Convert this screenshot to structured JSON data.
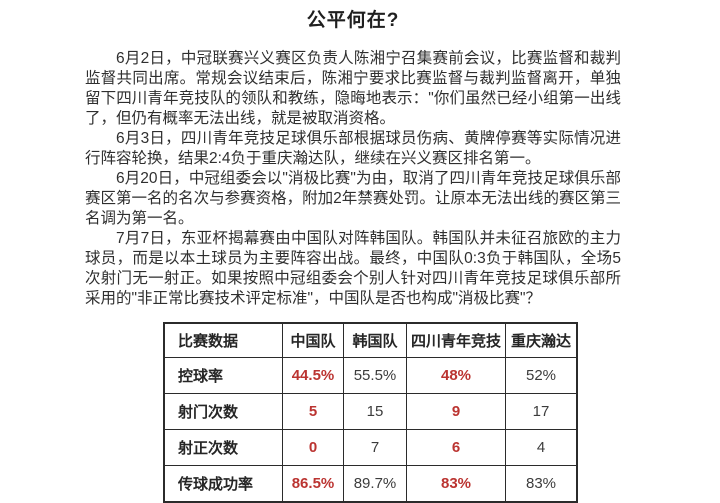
{
  "document": {
    "title": "公平何在?",
    "paragraphs": [
      "6月2日，中冠联赛兴义赛区负责人陈湘宁召集赛前会议，比赛监督和裁判监督共同出席。常规会议结束后，陈湘宁要求比赛监督与裁判监督离开，单独留下四川青年竞技队的领队和教练，隐晦地表示：\"你们虽然已经小组第一出线了，但仍有概率无法出线，就是被取消资格。",
      "6月3日，四川青年竞技足球俱乐部根据球员伤病、黄牌停赛等实际情况进行阵容轮换，结果2:4负于重庆瀚达队，继续在兴义赛区排名第一。",
      "6月20日，中冠组委会以\"消极比赛\"为由，取消了四川青年竞技足球俱乐部赛区第一名的名次与参赛资格，附加2年禁赛处罚。让原本无法出线的赛区第三名调为第一名。",
      "7月7日，东亚杯揭幕赛由中国队对阵韩国队。韩国队并未征召旅欧的主力球员，而是以本土球员为主要阵容出战。最终，中国队0:3负于韩国队，全场5次射门无一射正。如果按照中冠组委会个别人针对四川青年竞技足球俱乐部所采用的\"非正常比赛技术评定标准\"，中国队是否也构成\"消极比赛\"？"
    ]
  },
  "stats_table": {
    "headers": [
      "比赛数据",
      "中国队",
      "韩国队",
      "四川青年竞技",
      "重庆瀚达"
    ],
    "rows": [
      {
        "label": "控球率",
        "values": [
          "44.5%",
          "55.5%",
          "48%",
          "52%"
        ],
        "highlighted": [
          true,
          false,
          true,
          false
        ]
      },
      {
        "label": "射门次数",
        "values": [
          "5",
          "15",
          "9",
          "17"
        ],
        "highlighted": [
          true,
          false,
          true,
          false
        ]
      },
      {
        "label": "射正次数",
        "values": [
          "0",
          "7",
          "6",
          "4"
        ],
        "highlighted": [
          true,
          false,
          true,
          false
        ]
      },
      {
        "label": "传球成功率",
        "values": [
          "86.5%",
          "89.7%",
          "83%",
          "83%"
        ],
        "highlighted": [
          true,
          false,
          true,
          false
        ]
      }
    ],
    "colors": {
      "highlight": "#bb3431",
      "text": "#3c3c3c",
      "border": "#2b2b2b"
    }
  }
}
